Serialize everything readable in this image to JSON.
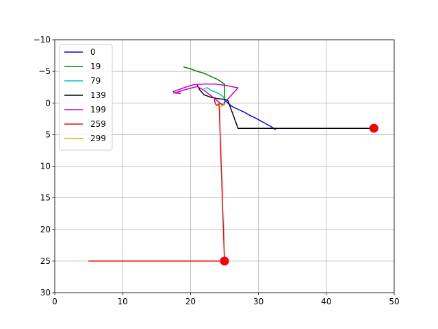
{
  "chart_data": {
    "type": "line",
    "title": "",
    "xlabel": "",
    "ylabel": "",
    "xlim": [
      0,
      50
    ],
    "ylim": [
      30,
      -10
    ],
    "y_inverted": true,
    "grid": true,
    "xticks": [
      0,
      10,
      20,
      30,
      40,
      50
    ],
    "yticks": [
      -10,
      -5,
      0,
      5,
      10,
      15,
      20,
      25,
      30
    ],
    "legend_position": "upper-left",
    "series": [
      {
        "name": "0",
        "color": "#0000ff",
        "points": [
          [
            32.5,
            4.2
          ],
          [
            31.8,
            3.7
          ],
          [
            30.6,
            3.0
          ],
          [
            29.6,
            2.4
          ],
          [
            28.8,
            2.0
          ],
          [
            28.0,
            1.5
          ],
          [
            27.0,
            1.0
          ],
          [
            26.2,
            0.6
          ],
          [
            25.7,
            0.2
          ],
          [
            25.3,
            -0.2
          ]
        ]
      },
      {
        "name": "19",
        "color": "#008000",
        "points": [
          [
            19.0,
            -5.7
          ],
          [
            20.0,
            -5.4
          ],
          [
            21.0,
            -5.0
          ],
          [
            22.0,
            -4.7
          ],
          [
            23.0,
            -4.2
          ],
          [
            24.0,
            -3.7
          ],
          [
            25.0,
            -3.0
          ],
          [
            25.0,
            -1.5
          ],
          [
            25.0,
            0.0
          ],
          [
            25.0,
            0.3
          ]
        ]
      },
      {
        "name": "79",
        "color": "#00bfbf",
        "points": [
          [
            22.0,
            -2.3
          ],
          [
            22.5,
            -2.4
          ],
          [
            23.0,
            -2.0
          ],
          [
            23.7,
            -1.7
          ],
          [
            24.3,
            -1.4
          ],
          [
            24.8,
            -1.0
          ],
          [
            25.1,
            -0.5
          ],
          [
            25.0,
            0.0
          ]
        ]
      },
      {
        "name": "139",
        "color": "#000000",
        "points": [
          [
            21.0,
            -2.8
          ],
          [
            21.4,
            -2.0
          ],
          [
            22.0,
            -1.3
          ],
          [
            23.0,
            -0.9
          ],
          [
            24.0,
            -0.7
          ],
          [
            24.8,
            -0.6
          ],
          [
            25.5,
            -0.4
          ],
          [
            27.0,
            4.0
          ],
          [
            47.0,
            4.0
          ]
        ]
      },
      {
        "name": "199",
        "color": "#bf00bf",
        "points": [
          [
            17.5,
            -1.8
          ],
          [
            18.5,
            -2.2
          ],
          [
            19.5,
            -2.6
          ],
          [
            20.5,
            -2.9
          ],
          [
            22.0,
            -3.0
          ],
          [
            23.5,
            -3.0
          ],
          [
            25.0,
            -2.8
          ],
          [
            27.0,
            -2.4
          ],
          [
            24.7,
            0.3
          ],
          [
            22.0,
            -2.0
          ],
          [
            21.0,
            -2.6
          ],
          [
            19.5,
            -2.2
          ],
          [
            18.0,
            -1.7
          ],
          [
            17.5,
            -1.6
          ],
          [
            18.5,
            -1.5
          ]
        ]
      },
      {
        "name": "259",
        "color": "#ff0000",
        "points": [
          [
            23.5,
            -0.5
          ],
          [
            23.7,
            0.2
          ],
          [
            23.9,
            0.4
          ],
          [
            24.2,
            0.1
          ],
          [
            25.0,
            25.0
          ],
          [
            5.0,
            25.0
          ]
        ]
      },
      {
        "name": "299",
        "color": "#bfbf00",
        "points": [
          [
            24.0,
            0.4
          ],
          [
            24.5,
            0.5
          ],
          [
            25.0,
            0.3
          ],
          [
            24.8,
            0.0
          ]
        ]
      }
    ],
    "markers": [
      {
        "x": 47.0,
        "y": 4.0,
        "color": "#ff0000"
      },
      {
        "x": 25.0,
        "y": 25.0,
        "color": "#ff0000"
      }
    ]
  }
}
